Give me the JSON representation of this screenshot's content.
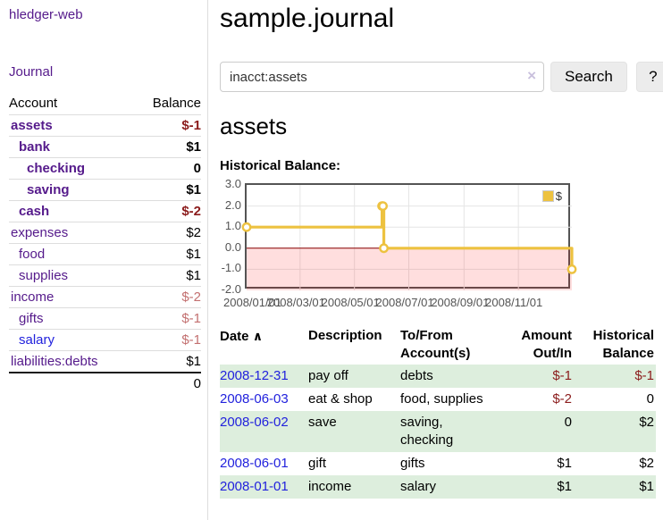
{
  "colors": {
    "link_purple": "#551a8b",
    "link_blue": "#2222dd",
    "negative_strong": "#8b1c1c",
    "negative_soft": "#c37070",
    "row_stripe_green": "#ddeedd",
    "chart_line": "#edc240",
    "chart_zero_line": "#8b0000",
    "chart_negative_fill": "rgba(255,0,0,0.13)",
    "chart_grid": "#e5e5e5",
    "axis_text": "#545454"
  },
  "app": {
    "title": "hledger-web",
    "nav_journal": "Journal"
  },
  "sidebar": {
    "header": {
      "account": "Account",
      "balance": "Balance"
    },
    "accounts": [
      {
        "name": "assets",
        "balance": "$-1",
        "level": 1,
        "bold": true,
        "balance_class": "neg-strong",
        "link": "purple"
      },
      {
        "name": "bank",
        "balance": "$1",
        "level": 2,
        "bold": true,
        "balance_class": "",
        "link": "purple"
      },
      {
        "name": "checking",
        "balance": "0",
        "level": 3,
        "bold": true,
        "balance_class": "",
        "link": "purple"
      },
      {
        "name": "saving",
        "balance": "$1",
        "level": 3,
        "bold": true,
        "balance_class": "",
        "link": "purple"
      },
      {
        "name": "cash",
        "balance": "$-2",
        "level": 2,
        "bold": true,
        "balance_class": "neg-strong",
        "link": "purple"
      },
      {
        "name": "expenses",
        "balance": "$2",
        "level": 1,
        "bold": false,
        "balance_class": "",
        "link": "purple"
      },
      {
        "name": "food",
        "balance": "$1",
        "level": 2,
        "bold": false,
        "balance_class": "",
        "link": "purple"
      },
      {
        "name": "supplies",
        "balance": "$1",
        "level": 2,
        "bold": false,
        "balance_class": "",
        "link": "purple"
      },
      {
        "name": "income",
        "balance": "$-2",
        "level": 1,
        "bold": false,
        "balance_class": "neg-soft",
        "link": "purple"
      },
      {
        "name": "gifts",
        "balance": "$-1",
        "level": 2,
        "bold": false,
        "balance_class": "neg-soft",
        "link": "purple"
      },
      {
        "name": "salary",
        "balance": "$-1",
        "level": 2,
        "bold": false,
        "balance_class": "neg-soft",
        "link": "blue"
      },
      {
        "name": "liabilities:debts",
        "balance": "$1",
        "level": 1,
        "bold": false,
        "balance_class": "",
        "link": "purple"
      }
    ],
    "total": "0"
  },
  "main": {
    "title": "sample.journal",
    "search": {
      "value": "inacct:assets",
      "clear_icon": "×",
      "button_label": "Search",
      "help_label": "?"
    },
    "account_heading": "assets",
    "chart_label": "Historical Balance:"
  },
  "chart_data": {
    "type": "line",
    "title": "Historical Balance of assets",
    "step": true,
    "legend": "$",
    "legend_position": "top-right",
    "x_range": [
      "2008-01-01",
      "2008-12-31"
    ],
    "ylim": [
      -2,
      3
    ],
    "y_ticks": [
      "3.0",
      "2.0",
      "1.0",
      "0.0",
      "-1.0",
      "-2.0"
    ],
    "y_tick_values": [
      3,
      2,
      1,
      0,
      -1,
      -2
    ],
    "x_ticks": [
      "2008/01/01",
      "2008/03/01",
      "2008/05/01",
      "2008/07/01",
      "2008/09/01",
      "2008/11/01"
    ],
    "x_tick_dates": [
      "2008-01-01",
      "2008-03-01",
      "2008-05-01",
      "2008-07-01",
      "2008-09-01",
      "2008-11-01"
    ],
    "grid": true,
    "negative_region_shaded": true,
    "series": [
      {
        "name": "$",
        "points": [
          {
            "x": "2008-01-01",
            "y": 1
          },
          {
            "x": "2008-06-01",
            "y": 2
          },
          {
            "x": "2008-06-02",
            "y": 2
          },
          {
            "x": "2008-06-03",
            "y": 0
          },
          {
            "x": "2008-12-31",
            "y": -1
          }
        ]
      }
    ]
  },
  "register": {
    "headers": {
      "date": "Date",
      "sort_arrow": "∧",
      "description": "Description",
      "tofrom_line1": "To/From",
      "tofrom_line2": "Account(s)",
      "amount_line1": "Amount",
      "amount_line2": "Out/In",
      "balance_line1": "Historical",
      "balance_line2": "Balance"
    },
    "rows": [
      {
        "date": "2008-12-31",
        "description": "pay off",
        "tofrom": "debts",
        "amount": "$-1",
        "amount_neg": true,
        "balance": "$-1",
        "balance_neg": true
      },
      {
        "date": "2008-06-03",
        "description": "eat & shop",
        "tofrom": "food, supplies",
        "amount": "$-2",
        "amount_neg": true,
        "balance": "0",
        "balance_neg": false
      },
      {
        "date": "2008-06-02",
        "description": "save",
        "tofrom": "saving, checking",
        "amount": "0",
        "amount_neg": false,
        "balance": "$2",
        "balance_neg": false
      },
      {
        "date": "2008-06-01",
        "description": "gift",
        "tofrom": "gifts",
        "amount": "$1",
        "amount_neg": false,
        "balance": "$2",
        "balance_neg": false
      },
      {
        "date": "2008-01-01",
        "description": "income",
        "tofrom": "salary",
        "amount": "$1",
        "amount_neg": false,
        "balance": "$1",
        "balance_neg": false
      }
    ]
  }
}
